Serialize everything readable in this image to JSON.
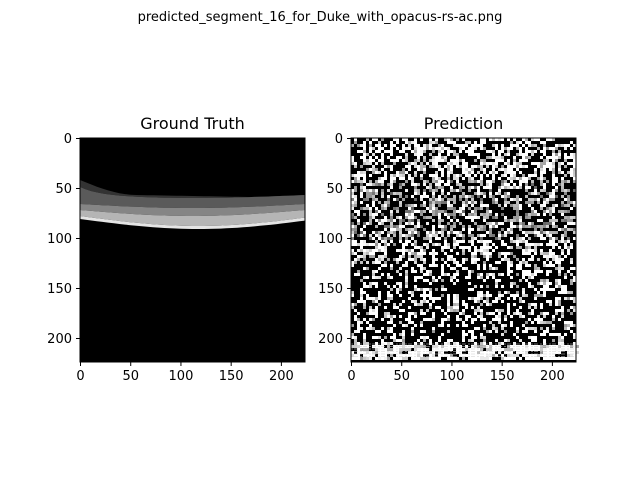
{
  "figure": {
    "suptitle": "predicted_segment_16_for_Duke_with_opacus-rs-ac.png"
  },
  "panels": [
    {
      "title": "Ground Truth",
      "image_kind": "segmentation-mask",
      "x_ticks": [
        "0",
        "50",
        "100",
        "150",
        "200"
      ],
      "y_ticks": [
        "0",
        "50",
        "100",
        "150",
        "200"
      ]
    },
    {
      "title": "Prediction",
      "image_kind": "noisy-prediction",
      "x_ticks": [
        "0",
        "50",
        "100",
        "150",
        "200"
      ],
      "y_ticks": [
        "0",
        "50",
        "100",
        "150",
        "200"
      ]
    }
  ],
  "colors": {
    "background": "#ffffff",
    "image_black": "#000000",
    "axis": "#000000"
  }
}
